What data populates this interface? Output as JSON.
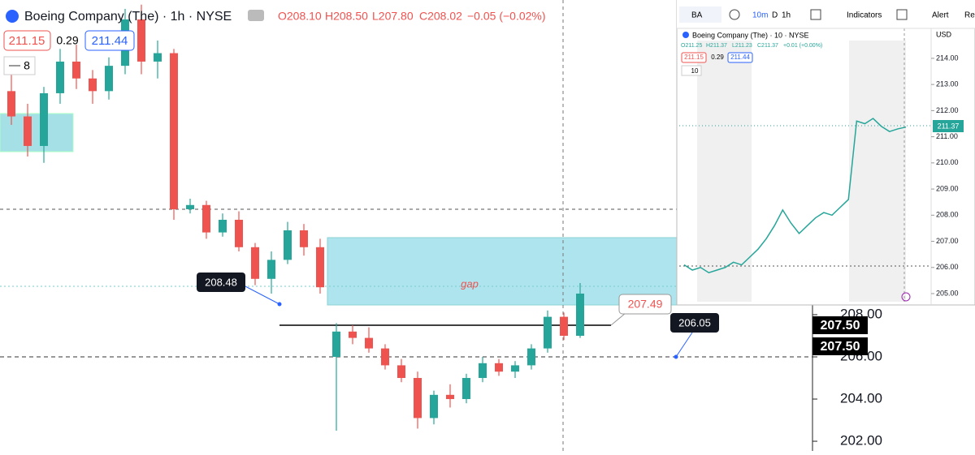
{
  "toolbar": {
    "symbol": "BA",
    "interval": "10m",
    "range_d": "D",
    "range_1h": "1h",
    "indicators": "Indicators",
    "alert": "Alert",
    "replay": "Re"
  },
  "chart_data": [
    {
      "type": "candlestick",
      "title": "Boeing Company (The) · 1h · NYSE",
      "ohlc_legend": [
        "O208.10",
        "H208.50",
        "L207.80",
        "C208.02",
        "−0.05 (−0.02%)"
      ],
      "bid": "211.15",
      "spread": "0.29",
      "ask": "211.44",
      "indicators": "8",
      "categories": [
        null,
        null,
        null,
        null,
        null,
        null,
        null,
        null,
        null,
        null,
        null,
        null,
        null,
        null,
        null,
        null,
        null,
        null,
        null,
        null,
        null,
        null,
        null,
        null,
        null,
        null,
        null,
        null,
        null,
        null,
        null,
        null,
        null,
        null,
        null,
        null
      ],
      "open": [
        218.6,
        217.4,
        216.0,
        218.5,
        220.0,
        219.2,
        218.6,
        219.8,
        222.0,
        220.0,
        220.4,
        213.0,
        213.2,
        211.9,
        212.5,
        211.2,
        209.7,
        210.6,
        212.0,
        211.2,
        206.0,
        207.2,
        206.9,
        206.4,
        205.6,
        205.0,
        203.1,
        204.2,
        204.0,
        205.0,
        205.7,
        205.3,
        205.6,
        206.4,
        207.9,
        207.0
      ],
      "high": [
        219.5,
        218.0,
        218.8,
        220.6,
        220.8,
        219.6,
        220.2,
        222.5,
        222.7,
        221.0,
        220.6,
        213.5,
        213.4,
        212.8,
        212.9,
        211.4,
        211.0,
        212.4,
        212.3,
        211.6,
        207.6,
        207.5,
        207.4,
        206.6,
        205.9,
        205.3,
        204.4,
        204.7,
        205.2,
        206.0,
        205.9,
        205.8,
        206.6,
        208.2,
        208.1,
        209.5
      ],
      "low": [
        217.0,
        215.5,
        215.2,
        218.0,
        218.7,
        218.0,
        218.2,
        219.4,
        219.4,
        219.2,
        212.5,
        212.8,
        211.6,
        211.7,
        211.0,
        209.4,
        209.0,
        210.4,
        210.8,
        209.0,
        202.5,
        206.6,
        206.2,
        205.4,
        204.8,
        202.6,
        202.8,
        203.6,
        203.8,
        204.8,
        205.1,
        205.0,
        205.4,
        206.2,
        206.8,
        206.9
      ],
      "close": [
        217.4,
        216.0,
        218.5,
        220.0,
        219.2,
        218.6,
        219.8,
        222.0,
        220.0,
        220.4,
        213.0,
        213.2,
        211.9,
        212.5,
        211.2,
        209.7,
        210.6,
        212.0,
        211.2,
        209.3,
        207.2,
        206.9,
        206.4,
        205.6,
        205.0,
        203.1,
        204.2,
        204.0,
        205.0,
        205.7,
        205.3,
        205.6,
        206.4,
        207.9,
        207.0,
        209.0
      ],
      "up_color": "#26a69a",
      "down_color": "#ef5350",
      "ylim": [
        201.54,
        222.92
      ],
      "yticks": [
        {
          "value": 208,
          "label": "208.00"
        },
        {
          "value": 206,
          "label": "206.00"
        },
        {
          "value": 204,
          "label": "204.00"
        },
        {
          "value": 202,
          "label": "202.00"
        }
      ],
      "annotations": [
        "208.48",
        "207.49",
        "206.05",
        "gap"
      ],
      "price_tags": [
        "207.50",
        "207.50"
      ]
    },
    {
      "type": "line",
      "title": "Boeing Company (The) · 10 · NYSE",
      "ohlc_legend": [
        "O211.25",
        "H211.37",
        "L211.23",
        "C211.37",
        "+0.01 (+0.00%)"
      ],
      "bid": "211.15",
      "spread": "0.29",
      "ask": "211.44",
      "indicators": "10",
      "currency": "USD",
      "last_price": "211.37",
      "categories": [
        null,
        null,
        null,
        null,
        null,
        null,
        null,
        null,
        null,
        null,
        null,
        null,
        null,
        null,
        null,
        null,
        null,
        null,
        null,
        null,
        null,
        null,
        null,
        null,
        null,
        null,
        null,
        null
      ],
      "values": [
        206.1,
        205.9,
        206.0,
        205.8,
        205.9,
        206.0,
        206.2,
        206.1,
        206.4,
        206.7,
        207.1,
        207.6,
        208.2,
        207.7,
        207.3,
        207.6,
        207.9,
        208.1,
        208.0,
        208.3,
        208.6,
        211.6,
        211.5,
        211.7,
        211.4,
        211.2,
        211.3,
        211.37
      ],
      "color": "#26a69a",
      "ylim": [
        204.69,
        214.68
      ],
      "yticks": [
        {
          "value": 214,
          "label": "214.00"
        },
        {
          "value": 213,
          "label": "213.00"
        },
        {
          "value": 212,
          "label": "212.00"
        },
        {
          "value": 211,
          "label": "211.00"
        },
        {
          "value": 210,
          "label": "210.00"
        },
        {
          "value": 209,
          "label": "209.00"
        },
        {
          "value": 208,
          "label": "208.00"
        },
        {
          "value": 207,
          "label": "207.00"
        },
        {
          "value": 206,
          "label": "206.00"
        },
        {
          "value": 205,
          "label": "205.00"
        }
      ]
    }
  ]
}
